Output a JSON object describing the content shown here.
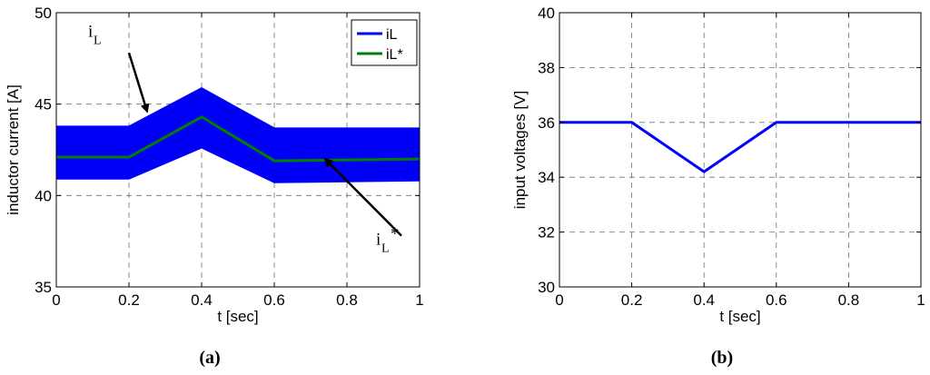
{
  "chart_data": [
    {
      "type": "line",
      "panel_label": "(a)",
      "xlabel": "t [sec]",
      "ylabel": "inductor current [A]",
      "xlim": [
        0,
        1
      ],
      "ylim": [
        35,
        50
      ],
      "xticks": [
        0,
        0.2,
        0.4,
        0.6,
        0.8,
        1
      ],
      "xtick_labels": [
        "0",
        "0.2",
        "0.4",
        "0.6",
        "0.8",
        "1"
      ],
      "yticks": [
        35,
        40,
        45,
        50
      ],
      "ytick_labels": [
        "35",
        "40",
        "45",
        "50"
      ],
      "grid": true,
      "legend_position": "top-right",
      "series": [
        {
          "name": "iL",
          "color": "#0000ff",
          "style": "ripple band",
          "x": [
            0,
            0.2,
            0.4,
            0.6,
            1.0
          ],
          "upper": [
            43.8,
            43.8,
            45.9,
            43.7,
            43.7
          ],
          "lower": [
            40.9,
            40.9,
            42.6,
            40.7,
            40.8
          ]
        },
        {
          "name": "iL*",
          "color": "#008000",
          "x": [
            0,
            0.2,
            0.4,
            0.6,
            1.0
          ],
          "y": [
            42.1,
            42.1,
            44.3,
            41.9,
            42.0
          ]
        }
      ],
      "annotations": [
        {
          "text": "i",
          "subscript": "L",
          "superscript": "",
          "arrow_from": [
            0.2,
            47.8
          ],
          "arrow_to": [
            0.25,
            44.6
          ]
        },
        {
          "text": "i",
          "subscript": "L",
          "superscript": "*",
          "arrow_from": [
            0.95,
            37.8
          ],
          "arrow_to": [
            0.74,
            42.0
          ]
        }
      ]
    },
    {
      "type": "line",
      "panel_label": "(b)",
      "xlabel": "t [sec]",
      "ylabel": "input voltages [V]",
      "xlim": [
        0,
        1
      ],
      "ylim": [
        30,
        40
      ],
      "xticks": [
        0,
        0.2,
        0.4,
        0.6,
        0.8,
        1
      ],
      "xtick_labels": [
        "0",
        "0.2",
        "0.4",
        "0.6",
        "0.8",
        "1"
      ],
      "yticks": [
        30,
        32,
        34,
        36,
        38,
        40
      ],
      "ytick_labels": [
        "30",
        "32",
        "34",
        "36",
        "38",
        "40"
      ],
      "grid": true,
      "series": [
        {
          "color": "#0000ff",
          "x": [
            0,
            0.2,
            0.4,
            0.6,
            1.0
          ],
          "y": [
            36,
            36,
            34.2,
            36,
            36
          ]
        }
      ]
    }
  ]
}
